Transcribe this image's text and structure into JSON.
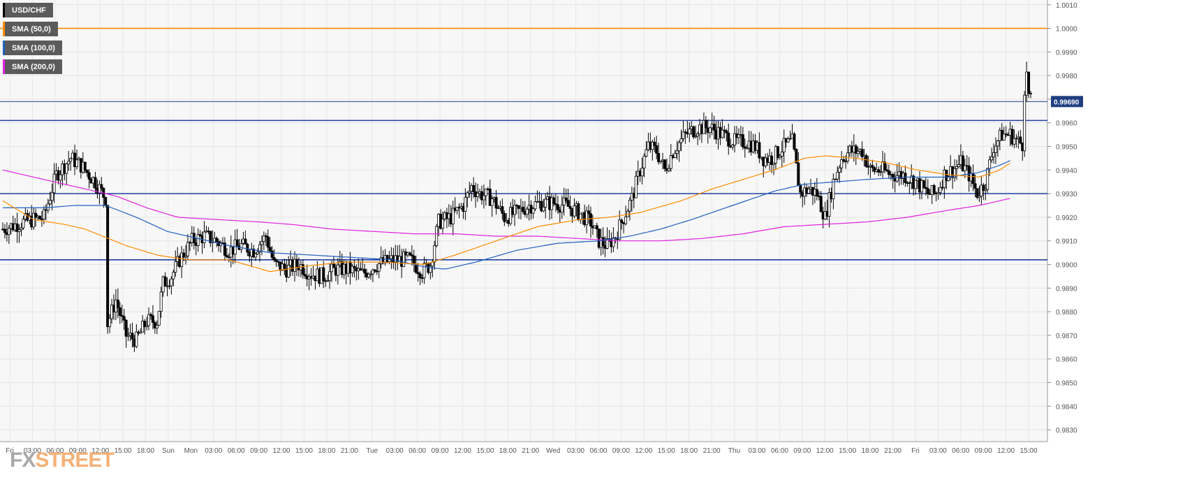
{
  "brand": {
    "fx": "FX",
    "street": "STREET"
  },
  "legend": [
    {
      "label": "USD/CHF",
      "color": "#000000"
    },
    {
      "label": "SMA (50,0)",
      "color": "#ff8c00"
    },
    {
      "label": "SMA (100,0)",
      "color": "#1f5fbf"
    },
    {
      "label": "SMA (200,0)",
      "color": "#e020e0"
    }
  ],
  "chart_data": {
    "type": "candlestick",
    "symbol": "USD/CHF",
    "current_price": "0.99690",
    "ylim": [
      0.9825,
      1.0012
    ],
    "y_ticks": [
      "1.0010",
      "1.0000",
      "0.9990",
      "0.9980",
      "0.9970",
      "0.9960",
      "0.9950",
      "0.9940",
      "0.9930",
      "0.9920",
      "0.9910",
      "0.9900",
      "0.9890",
      "0.9880",
      "0.9870",
      "0.9860",
      "0.9850",
      "0.9840",
      "0.9830"
    ],
    "x_ticks": [
      "Fri",
      "03:00",
      "06:00",
      "09:00",
      "12:00",
      "15:00",
      "18:00",
      "Sun",
      "Mon",
      "03:00",
      "06:00",
      "09:00",
      "12:00",
      "15:00",
      "18:00",
      "21:00",
      "Tue",
      "03:00",
      "06:00",
      "09:00",
      "12:00",
      "15:00",
      "18:00",
      "21:00",
      "Wed",
      "03:00",
      "06:00",
      "09:00",
      "12:00",
      "15:00",
      "18:00",
      "21:00",
      "Thu",
      "03:00",
      "06:00",
      "09:00",
      "12:00",
      "15:00",
      "18:00",
      "21:00",
      "Fri",
      "03:00",
      "06:00",
      "09:00",
      "12:00",
      "15:00"
    ],
    "horizontal_levels": [
      {
        "price": 1.0,
        "color": "#ff8c00"
      },
      {
        "price": 0.9969,
        "color": "#1f3f7f"
      },
      {
        "price": 0.9961,
        "color": "#1f3f9f"
      },
      {
        "price": 0.993,
        "color": "#1f3f9f"
      },
      {
        "price": 0.9902,
        "color": "#1f3f9f"
      }
    ],
    "price_anchors": [
      [
        0,
        0.9915
      ],
      [
        10,
        0.9918
      ],
      [
        20,
        0.992
      ],
      [
        26,
        0.9938
      ],
      [
        33,
        0.9945
      ],
      [
        38,
        0.9942
      ],
      [
        45,
        0.9935
      ],
      [
        50,
        0.9928
      ],
      [
        51,
        0.9875
      ],
      [
        55,
        0.9885
      ],
      [
        60,
        0.987
      ],
      [
        65,
        0.9868
      ],
      [
        70,
        0.9876
      ],
      [
        75,
        0.9876
      ],
      [
        78,
        0.9892
      ],
      [
        82,
        0.9895
      ],
      [
        86,
        0.9902
      ],
      [
        92,
        0.991
      ],
      [
        98,
        0.9912
      ],
      [
        104,
        0.991
      ],
      [
        110,
        0.9906
      ],
      [
        116,
        0.9908
      ],
      [
        122,
        0.9906
      ],
      [
        128,
        0.9912
      ],
      [
        132,
        0.99
      ],
      [
        138,
        0.9898
      ],
      [
        144,
        0.99
      ],
      [
        150,
        0.9896
      ],
      [
        156,
        0.9895
      ],
      [
        162,
        0.9898
      ],
      [
        168,
        0.9898
      ],
      [
        175,
        0.9896
      ],
      [
        182,
        0.99
      ],
      [
        190,
        0.9902
      ],
      [
        198,
        0.9902
      ],
      [
        204,
        0.9897
      ],
      [
        208,
        0.99
      ],
      [
        212,
        0.9918
      ],
      [
        218,
        0.992
      ],
      [
        224,
        0.9925
      ],
      [
        228,
        0.9933
      ],
      [
        232,
        0.993
      ],
      [
        238,
        0.9928
      ],
      [
        244,
        0.992
      ],
      [
        250,
        0.9922
      ],
      [
        256,
        0.9925
      ],
      [
        262,
        0.9926
      ],
      [
        268,
        0.9926
      ],
      [
        274,
        0.9925
      ],
      [
        280,
        0.9922
      ],
      [
        286,
        0.9918
      ],
      [
        290,
        0.991
      ],
      [
        294,
        0.9908
      ],
      [
        298,
        0.9912
      ],
      [
        302,
        0.992
      ],
      [
        306,
        0.9928
      ],
      [
        310,
        0.994
      ],
      [
        314,
        0.995
      ],
      [
        318,
        0.9948
      ],
      [
        322,
        0.994
      ],
      [
        326,
        0.9948
      ],
      [
        332,
        0.9955
      ],
      [
        338,
        0.9958
      ],
      [
        344,
        0.9958
      ],
      [
        350,
        0.9955
      ],
      [
        356,
        0.9952
      ],
      [
        362,
        0.9952
      ],
      [
        366,
        0.995
      ],
      [
        370,
        0.9945
      ],
      [
        374,
        0.9945
      ],
      [
        380,
        0.995
      ],
      [
        384,
        0.9952
      ],
      [
        388,
        0.993
      ],
      [
        392,
        0.9932
      ],
      [
        396,
        0.993
      ],
      [
        400,
        0.992
      ],
      [
        404,
        0.9935
      ],
      [
        408,
        0.9945
      ],
      [
        412,
        0.9948
      ],
      [
        418,
        0.9948
      ],
      [
        422,
        0.994
      ],
      [
        428,
        0.994
      ],
      [
        432,
        0.9938
      ],
      [
        438,
        0.9938
      ],
      [
        444,
        0.9935
      ],
      [
        450,
        0.993
      ],
      [
        454,
        0.993
      ],
      [
        458,
        0.9938
      ],
      [
        462,
        0.994
      ],
      [
        466,
        0.9943
      ],
      [
        470,
        0.9938
      ],
      [
        474,
        0.993
      ],
      [
        478,
        0.9935
      ],
      [
        482,
        0.995
      ],
      [
        486,
        0.9955
      ],
      [
        490,
        0.9955
      ],
      [
        494,
        0.9952
      ],
      [
        496,
        0.9951
      ],
      [
        497,
        0.9975
      ],
      [
        498,
        0.998
      ],
      [
        499,
        0.9972
      ],
      [
        500,
        0.9969
      ]
    ],
    "sma50": [
      [
        0,
        0.9927
      ],
      [
        15,
        0.9919
      ],
      [
        30,
        0.9917
      ],
      [
        40,
        0.9915
      ],
      [
        60,
        0.9908
      ],
      [
        75,
        0.9904
      ],
      [
        90,
        0.9902
      ],
      [
        110,
        0.9902
      ],
      [
        130,
        0.9897
      ],
      [
        145,
        0.9899
      ],
      [
        165,
        0.9901
      ],
      [
        185,
        0.9901
      ],
      [
        205,
        0.99
      ],
      [
        220,
        0.9904
      ],
      [
        240,
        0.991
      ],
      [
        260,
        0.9916
      ],
      [
        280,
        0.9919
      ],
      [
        295,
        0.992
      ],
      [
        310,
        0.9922
      ],
      [
        330,
        0.9927
      ],
      [
        345,
        0.9932
      ],
      [
        360,
        0.9936
      ],
      [
        375,
        0.994
      ],
      [
        390,
        0.9945
      ],
      [
        400,
        0.9946
      ],
      [
        415,
        0.9945
      ],
      [
        430,
        0.9943
      ],
      [
        445,
        0.994
      ],
      [
        460,
        0.9938
      ],
      [
        475,
        0.9937
      ],
      [
        485,
        0.994
      ],
      [
        490,
        0.9943
      ]
    ],
    "sma100": [
      [
        0,
        0.9924
      ],
      [
        20,
        0.9924
      ],
      [
        35,
        0.9925
      ],
      [
        50,
        0.9925
      ],
      [
        65,
        0.992
      ],
      [
        80,
        0.9914
      ],
      [
        95,
        0.9911
      ],
      [
        110,
        0.9908
      ],
      [
        130,
        0.9905
      ],
      [
        150,
        0.9904
      ],
      [
        170,
        0.9903
      ],
      [
        190,
        0.9902
      ],
      [
        205,
        0.9899
      ],
      [
        215,
        0.9898
      ],
      [
        230,
        0.9901
      ],
      [
        250,
        0.9906
      ],
      [
        270,
        0.9909
      ],
      [
        290,
        0.991
      ],
      [
        305,
        0.9912
      ],
      [
        320,
        0.9915
      ],
      [
        335,
        0.9919
      ],
      [
        355,
        0.9925
      ],
      [
        375,
        0.9931
      ],
      [
        390,
        0.9934
      ],
      [
        405,
        0.9935
      ],
      [
        420,
        0.9936
      ],
      [
        440,
        0.9937
      ],
      [
        460,
        0.9937
      ],
      [
        475,
        0.9939
      ],
      [
        485,
        0.9942
      ],
      [
        490,
        0.9944
      ]
    ],
    "sma200": [
      [
        0,
        0.994
      ],
      [
        20,
        0.9936
      ],
      [
        40,
        0.9932
      ],
      [
        55,
        0.9929
      ],
      [
        70,
        0.9924
      ],
      [
        85,
        0.992
      ],
      [
        105,
        0.9919
      ],
      [
        125,
        0.9918
      ],
      [
        140,
        0.9917
      ],
      [
        160,
        0.9915
      ],
      [
        180,
        0.9914
      ],
      [
        200,
        0.9913
      ],
      [
        220,
        0.9913
      ],
      [
        240,
        0.9912
      ],
      [
        260,
        0.9912
      ],
      [
        280,
        0.9911
      ],
      [
        300,
        0.991
      ],
      [
        320,
        0.991
      ],
      [
        340,
        0.9911
      ],
      [
        360,
        0.9913
      ],
      [
        380,
        0.9916
      ],
      [
        400,
        0.9917
      ],
      [
        420,
        0.9918
      ],
      [
        440,
        0.992
      ],
      [
        460,
        0.9923
      ],
      [
        475,
        0.9925
      ],
      [
        490,
        0.9928
      ]
    ]
  }
}
